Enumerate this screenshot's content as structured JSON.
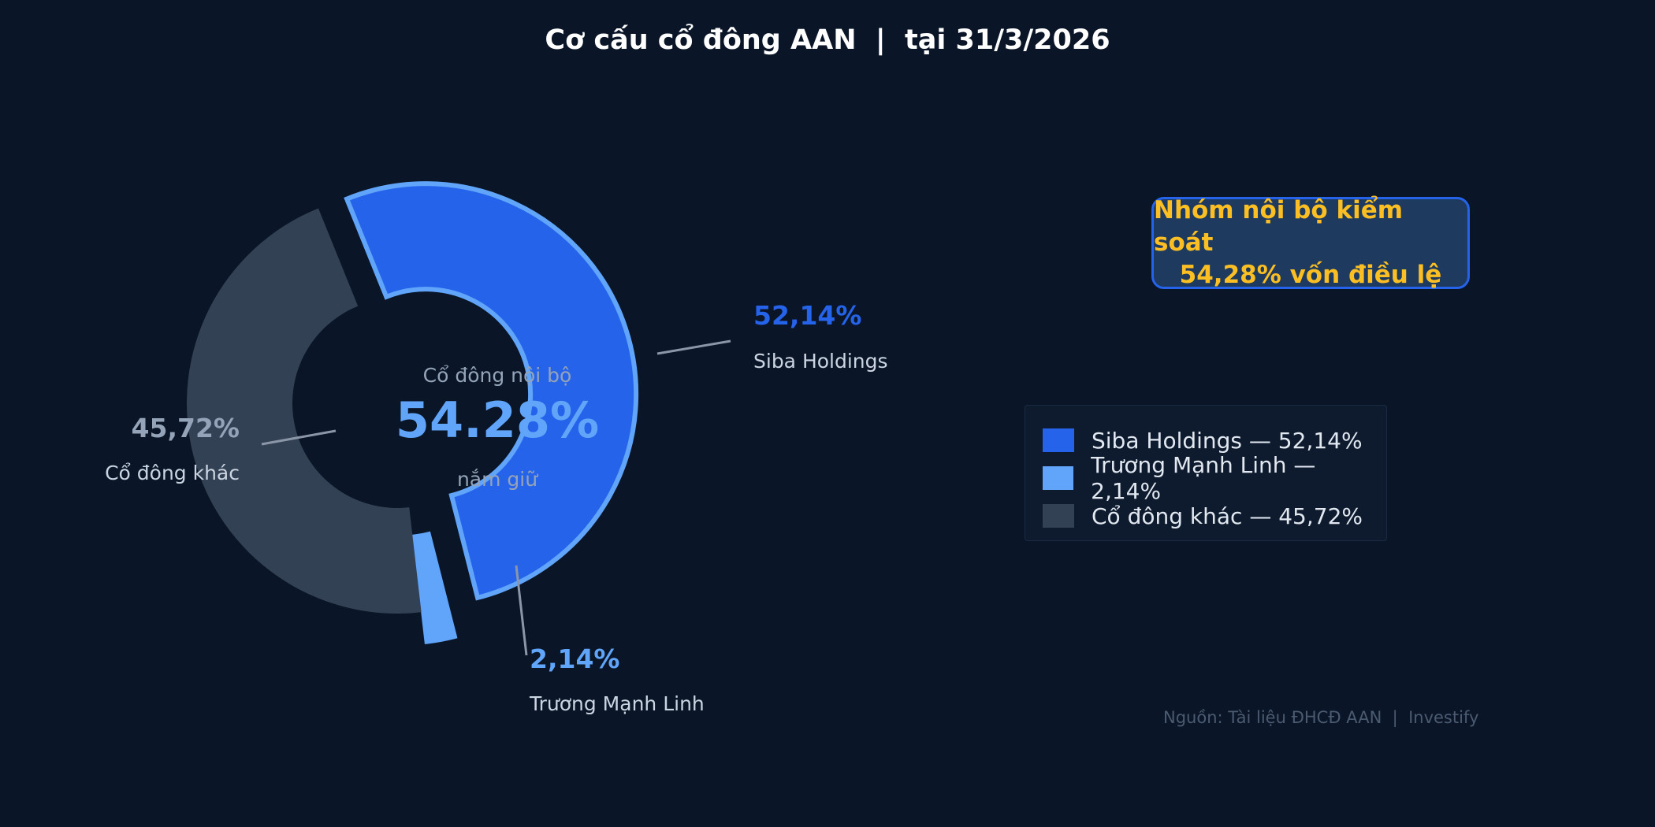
{
  "chart_data": {
    "type": "pie",
    "title": "Cơ cấu cổ đông AAN  |  tại 31/3/2026",
    "series": [
      {
        "name": "Siba Holdings",
        "value": 52.14,
        "label": "52,14%",
        "color": "#2563eb",
        "exploded": true
      },
      {
        "name": "Trương Mạnh Linh",
        "value": 2.14,
        "label": "2,14%",
        "color": "#60a5fa",
        "exploded": true
      },
      {
        "name": "Cổ đông khác",
        "value": 45.72,
        "label": "45,72%",
        "color": "#334155",
        "exploded": false
      }
    ],
    "center": {
      "top": "Cổ đông nội bộ",
      "value": "54.28%",
      "bottom": "nắm giữ"
    },
    "legend_position": "right",
    "legend_items": [
      "Siba Holdings — 52,14%",
      "Trương Mạnh Linh — 2,14%",
      "Cổ đông khác — 45,72%"
    ]
  },
  "callout": {
    "line1": "Nhóm nội bộ kiểm soát",
    "line2": "54,28% vốn điều lệ"
  },
  "source": "Nguồn: Tài liệu ĐHCĐ AAN  |  Investify",
  "colors": {
    "background": "#0a1628",
    "siba": "#2563eb",
    "linh": "#60a5fa",
    "others": "#334155",
    "highlight": "#fbbf24"
  }
}
